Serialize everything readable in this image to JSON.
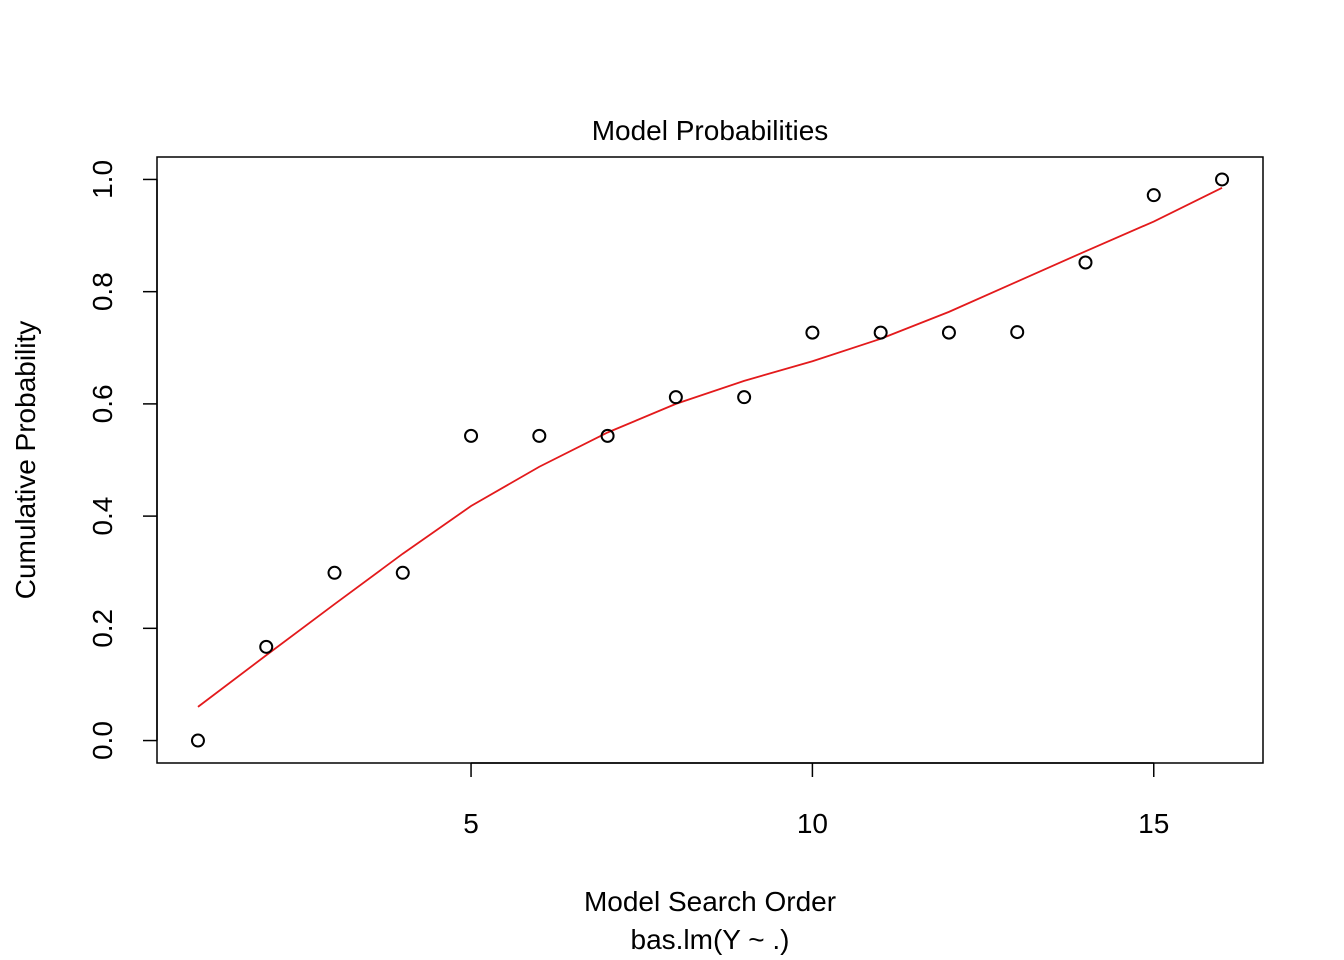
{
  "chart_data": {
    "type": "scatter",
    "title": "Model Probabilities",
    "xlabel": "Model Search Order",
    "sublabel": "bas.lm(Y ~ .)",
    "ylabel": "Cumulative Probability",
    "xlim": [
      0.4,
      16.6
    ],
    "ylim": [
      -0.04,
      1.04
    ],
    "x_ticks": [
      5,
      10,
      15
    ],
    "x_tick_labels": [
      "5",
      "10",
      "15"
    ],
    "y_ticks": [
      0.0,
      0.2,
      0.4,
      0.6,
      0.8,
      1.0
    ],
    "y_tick_labels": [
      "0.0",
      "0.2",
      "0.4",
      "0.6",
      "0.8",
      "1.0"
    ],
    "grid": false,
    "legend": "none",
    "series": [
      {
        "type": "scatter",
        "marker": "open-circle",
        "color": "#000000",
        "x": [
          1,
          2,
          3,
          4,
          5,
          6,
          7,
          8,
          9,
          10,
          11,
          12,
          13,
          14,
          15,
          16
        ],
        "y": [
          0.0,
          0.167,
          0.299,
          0.299,
          0.543,
          0.543,
          0.543,
          0.612,
          0.612,
          0.727,
          0.727,
          0.727,
          0.728,
          0.852,
          0.972,
          1.0
        ]
      },
      {
        "type": "line",
        "color": "#e31a1c",
        "x": [
          1,
          2,
          3,
          4,
          5,
          6,
          7,
          8,
          9,
          10,
          11,
          12,
          13,
          14,
          15,
          16
        ],
        "y": [
          0.06,
          0.152,
          0.243,
          0.333,
          0.418,
          0.488,
          0.549,
          0.6,
          0.641,
          0.676,
          0.716,
          0.764,
          0.818,
          0.872,
          0.925,
          0.985
        ]
      }
    ]
  }
}
